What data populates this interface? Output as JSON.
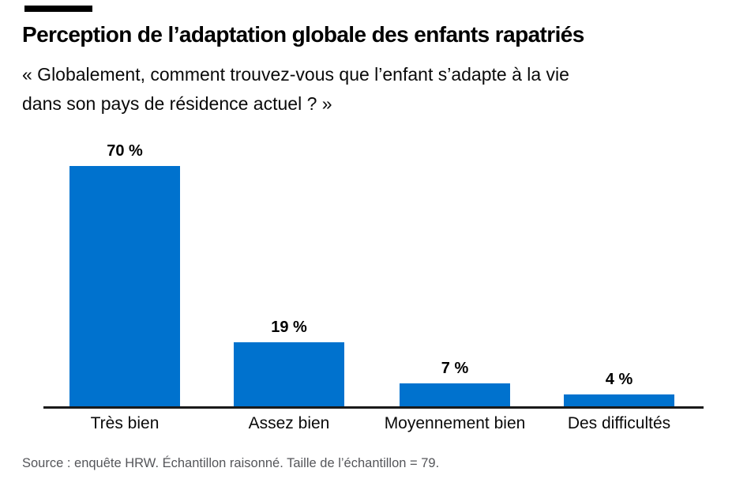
{
  "header": {
    "title": "Perception de l’adaptation globale des enfants rapatriés",
    "subtitle": {
      "line1": "« Globalement, comment trouvez-vous que l’enfant s’adapte à la vie",
      "line2": "dans son pays de résidence actuel ? »"
    }
  },
  "chart_data": {
    "type": "bar",
    "title": "Perception de l’adaptation globale des enfants rapatriés",
    "question": "« Globalement, comment trouvez-vous que l’enfant s’adapte à la vie dans son pays de résidence actuel ? »",
    "categories": [
      "Très bien",
      "Assez bien",
      "Moyennement bien",
      "Des difficultés"
    ],
    "values": [
      70,
      19,
      7,
      4
    ],
    "value_labels": [
      "70 %",
      "19 %",
      "7 %",
      "4 %"
    ],
    "xlabel": "",
    "ylabel": "",
    "ylim": [
      0,
      78
    ],
    "grid": false,
    "legend": null,
    "bar_color": "#0072ce"
  },
  "footer": {
    "source": "Source : enquête HRW. Échantillon raisonné. Taille de l’échantillon = 79."
  },
  "colors": {
    "bar": "#0072ce",
    "axis": "#1a1a1a",
    "accent_rule": "#000000",
    "source_text": "#55565a"
  }
}
